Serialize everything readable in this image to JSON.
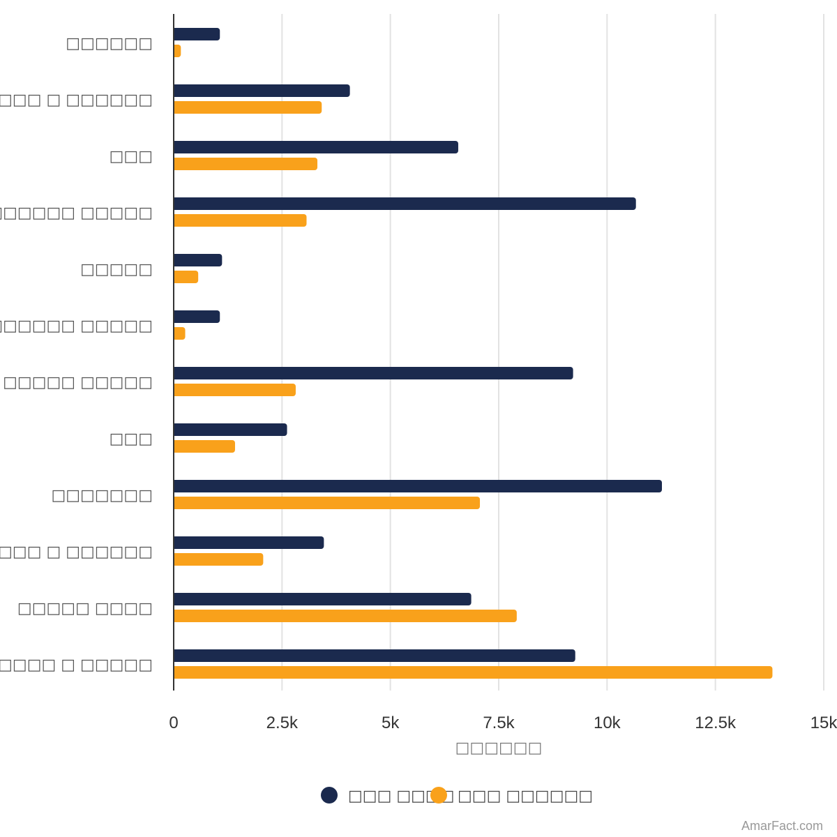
{
  "chart_data": {
    "type": "bar",
    "orientation": "horizontal",
    "categories": [
      "□□□□□□",
      "□□□□□□ □ □□□□□□",
      "□□□",
      "□□□□□□□□ □□□□□",
      "□□□□□",
      "□□□□□□□ □ □□□□□□ □□□□□",
      "□□□□□ □□□□□",
      "□□□",
      "□□□□□□□",
      "□□□□□□ □ □□□□□□",
      "□□□□□ □□□□",
      "□□□□□□□□ □ □□□□□"
    ],
    "series": [
      {
        "name": "□□□ □□□□",
        "color": "#1b2a4e",
        "values": [
          1050,
          4050,
          6550,
          10650,
          1100,
          1050,
          9200,
          2600,
          11250,
          3450,
          6850,
          9250
        ]
      },
      {
        "name": "□□□ □□□□□□",
        "color": "#f9a11b",
        "values": [
          150,
          3400,
          3300,
          3050,
          550,
          250,
          2800,
          1400,
          7050,
          2050,
          7900,
          13800
        ]
      }
    ],
    "xlabel": "□□□□□□",
    "xlim": [
      0,
      15000
    ],
    "ticks": [
      "0",
      "2.5k",
      "5k",
      "7.5k",
      "10k",
      "12.5k",
      "15k"
    ],
    "grid": true,
    "legend_position": "bottom-center"
  },
  "credit": "AmarFact.com"
}
